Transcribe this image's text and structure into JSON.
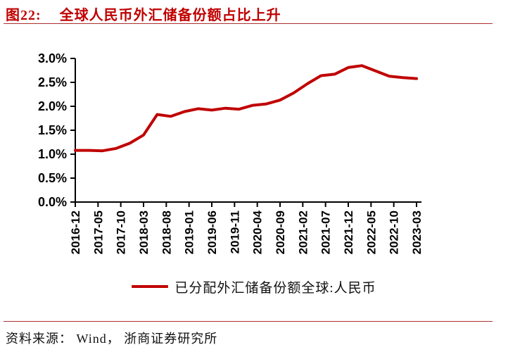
{
  "header": {
    "figure_label": "图22:",
    "title": "全球人民币外汇储备份额占比上升"
  },
  "footer": {
    "source": "资料来源： Wind， 浙商证券研究所"
  },
  "theme": {
    "accent_red": "#c00000",
    "axis_color": "#000000",
    "label_color": "#000000",
    "rule_color": "#b03030"
  },
  "chart_data": {
    "type": "line",
    "title": "全球人民币外汇储备份额占比上升",
    "xlabel": "",
    "ylabel": "",
    "ylim": [
      0.0,
      3.0
    ],
    "y_tick_step": 0.5,
    "grid": false,
    "legend_position": "bottom",
    "y_tick_labels": [
      "0.0%",
      "0.5%",
      "1.0%",
      "1.5%",
      "2.0%",
      "2.5%",
      "3.0%"
    ],
    "x_tick_labels": [
      "2016-12",
      "2017-05",
      "2017-10",
      "2018-03",
      "2018-08",
      "2019-01",
      "2019-06",
      "2019-11",
      "2020-04",
      "2020-09",
      "2021-02",
      "2021-07",
      "2021-12",
      "2022-05",
      "2022-10",
      "2023-03"
    ],
    "series": [
      {
        "name": "已分配外汇储备份额全球:人民币",
        "color": "#c00000",
        "x": [
          "2016-12",
          "2017-03",
          "2017-06",
          "2017-09",
          "2017-12",
          "2018-03",
          "2018-06",
          "2018-09",
          "2018-12",
          "2019-03",
          "2019-06",
          "2019-09",
          "2019-12",
          "2020-03",
          "2020-06",
          "2020-09",
          "2020-12",
          "2021-03",
          "2021-06",
          "2021-09",
          "2021-12",
          "2022-03",
          "2022-06",
          "2022-09",
          "2022-12",
          "2023-03"
        ],
        "values": [
          1.08,
          1.08,
          1.07,
          1.12,
          1.23,
          1.4,
          1.83,
          1.79,
          1.89,
          1.95,
          1.92,
          1.96,
          1.94,
          2.02,
          2.05,
          2.13,
          2.28,
          2.47,
          2.64,
          2.67,
          2.81,
          2.85,
          2.74,
          2.63,
          2.6,
          2.58
        ]
      }
    ]
  }
}
